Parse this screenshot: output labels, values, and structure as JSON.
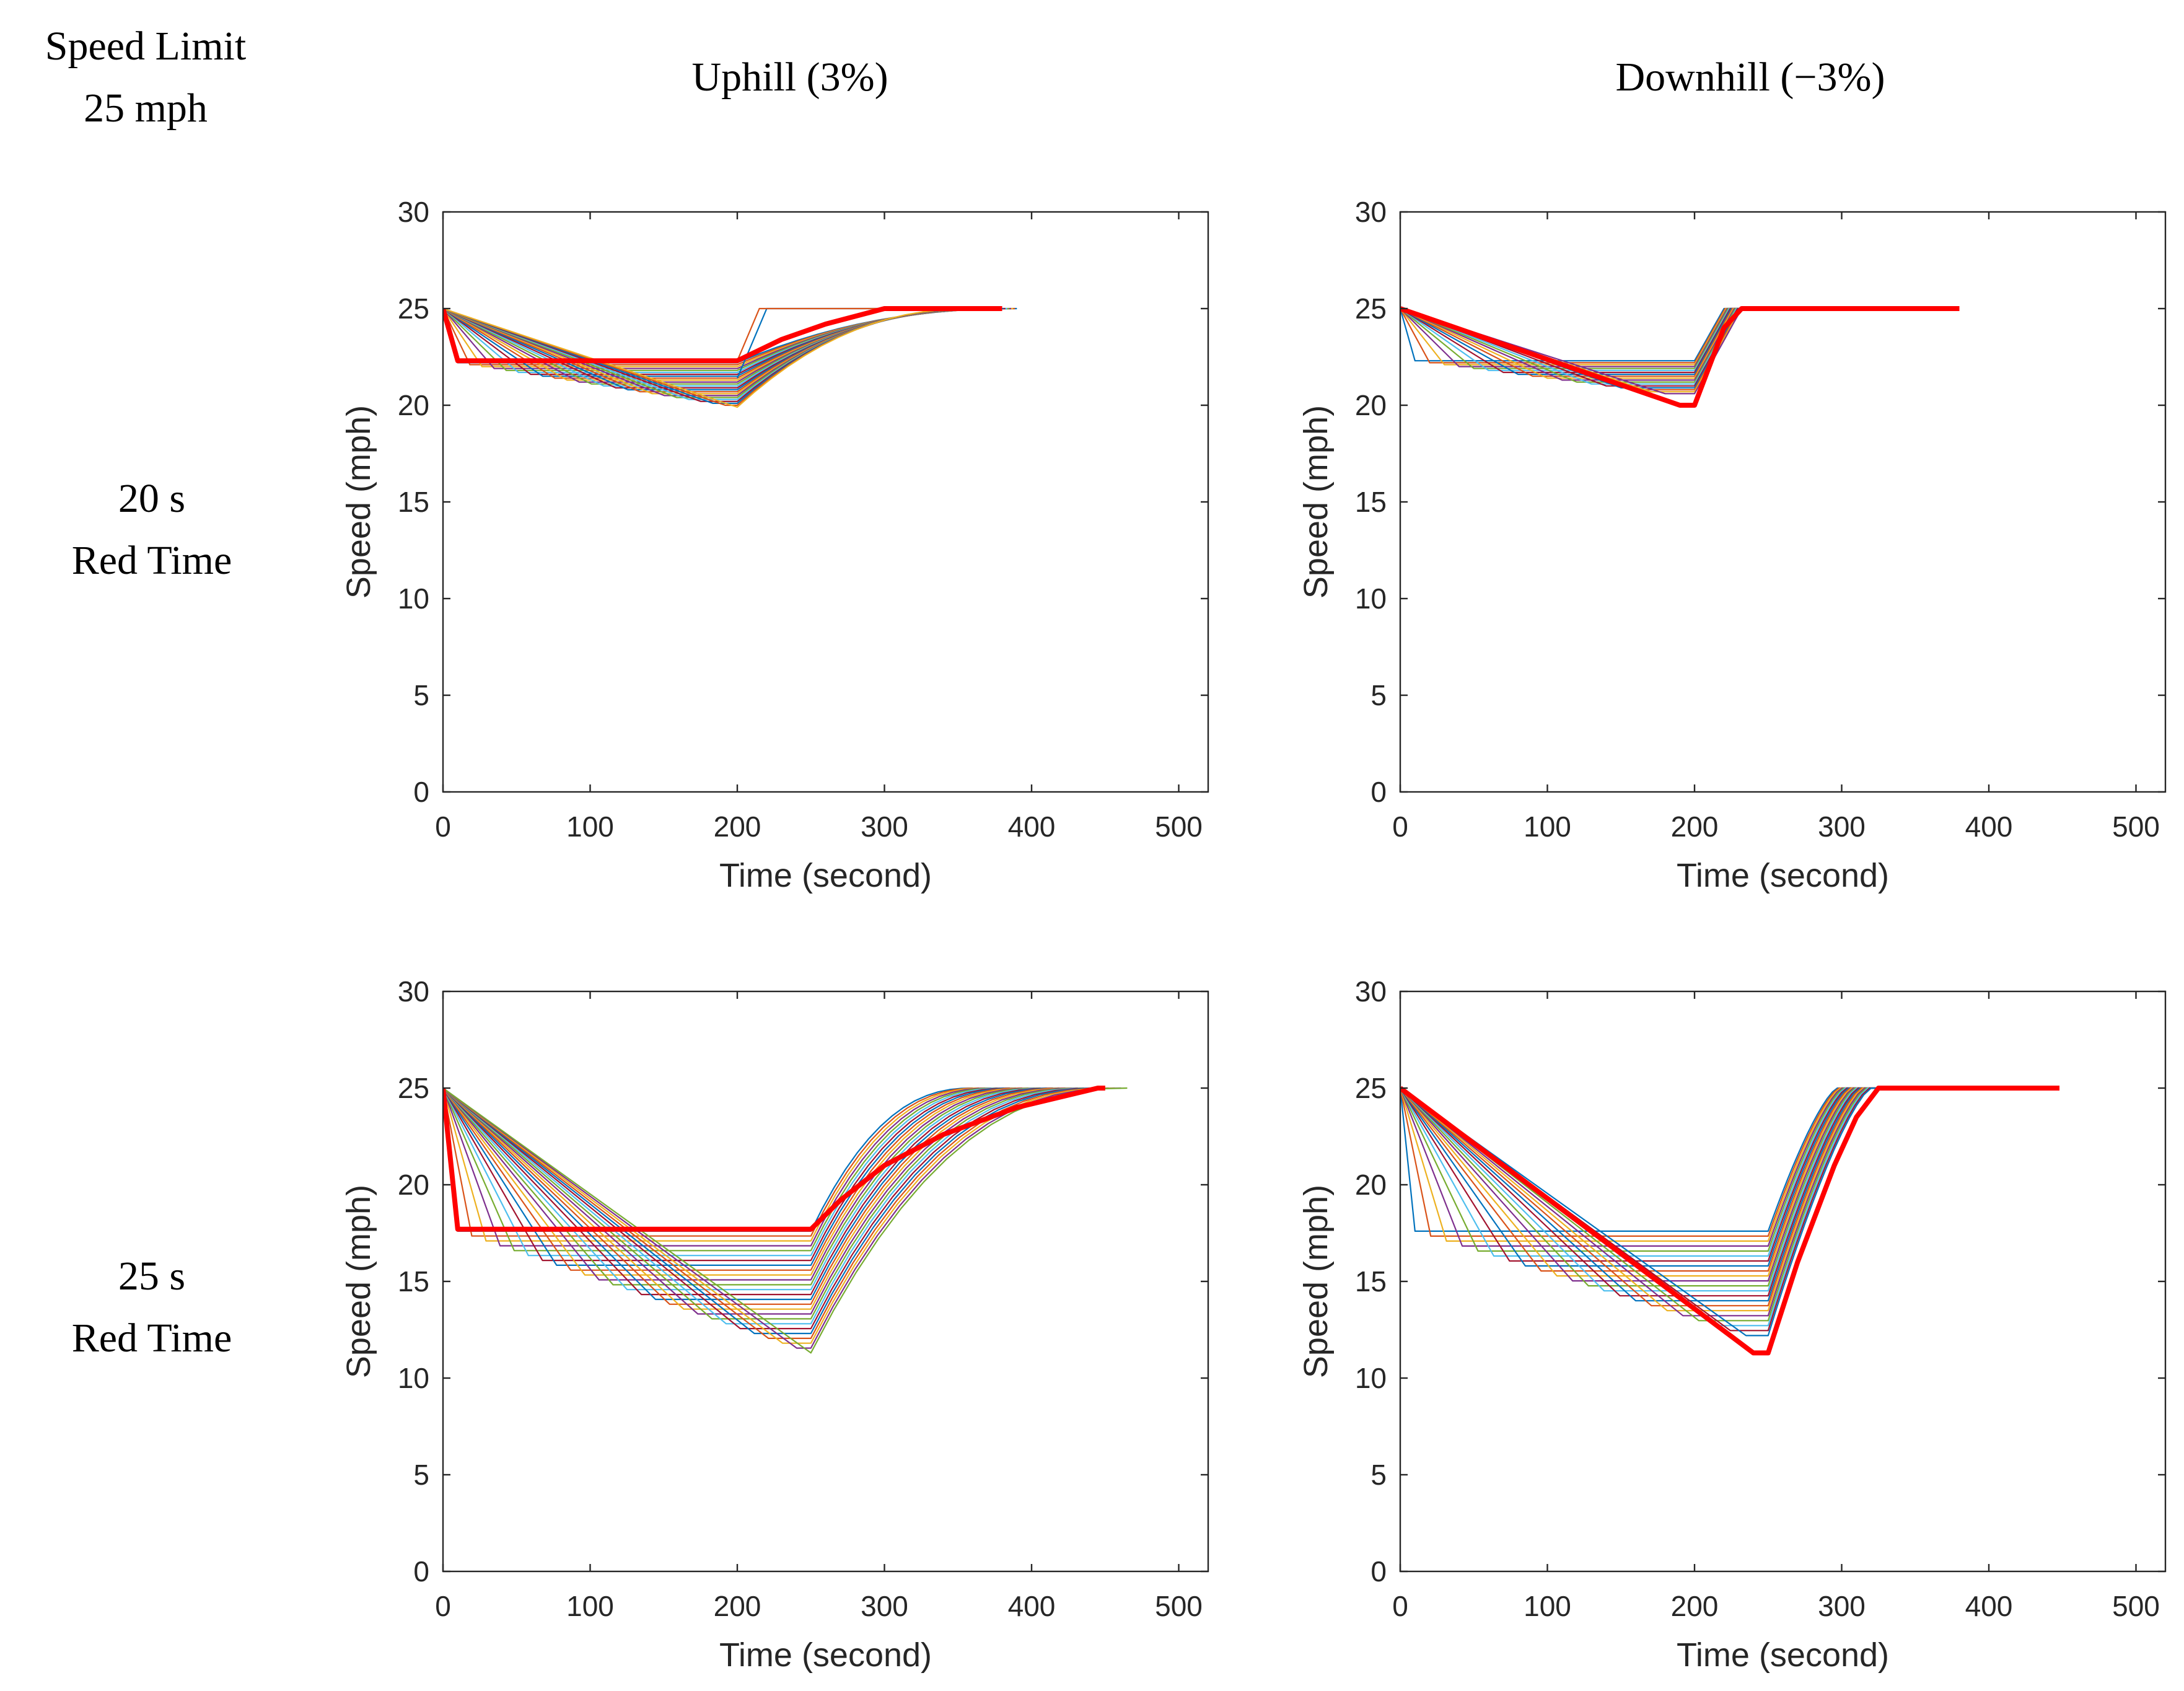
{
  "header": {
    "corner_line1": "Speed Limit",
    "corner_line2": "25 mph",
    "col_uphill": "Uphill (3%)",
    "col_downhill": "Downhill (−3%)"
  },
  "rows": {
    "row1_line1": "20 s",
    "row1_line2": "Red Time",
    "row2_line1": "25 s",
    "row2_line2": "Red Time"
  },
  "style": {
    "highlight_color": "#ff0000",
    "axis_color": "#262626",
    "palette": [
      "#0072bd",
      "#d95319",
      "#edb120",
      "#7e2f8e",
      "#77ac30",
      "#4dbeee",
      "#a2142f"
    ]
  },
  "chart_data": [
    {
      "id": "uphill-20s",
      "type": "line",
      "title": "",
      "xlabel": "Time (second)",
      "ylabel": "Speed (mph)",
      "xlim": [
        0,
        520
      ],
      "ylim": [
        0,
        30
      ],
      "xticks": [
        0,
        100,
        200,
        300,
        400,
        500
      ],
      "yticks": [
        0,
        5,
        10,
        15,
        20,
        25,
        30
      ],
      "grid": false,
      "bundle": {
        "shape": "ramp",
        "count": 24,
        "v0": 25,
        "vmin": 22.2,
        "vmax": 19.9,
        "drop_start": 10,
        "drop_end": 200,
        "t_end": 200,
        "rec_start": 390,
        "rec_end": 360,
        "rec_curve": 0.4
      },
      "series": [
        {
          "name": "highlighted",
          "color": "#ff0000",
          "points": [
            [
              0,
              25
            ],
            [
              10,
              22.3
            ],
            [
              200,
              22.3
            ],
            [
              230,
              23.4
            ],
            [
              260,
              24.2
            ],
            [
              300,
              25
            ],
            [
              380,
              25
            ]
          ]
        },
        {
          "name": "fast-recovery",
          "color": "#d95319",
          "points": [
            [
              200,
              22.3
            ],
            [
              215,
              25
            ],
            [
              225,
              25
            ],
            [
              380,
              25
            ]
          ]
        },
        {
          "name": "fast-recovery-2",
          "color": "#0072bd",
          "points": [
            [
              200,
              21.4
            ],
            [
              220,
              25
            ],
            [
              232,
              25
            ],
            [
              380,
              25
            ]
          ]
        }
      ]
    },
    {
      "id": "downhill-20s",
      "type": "line",
      "title": "",
      "xlabel": "Time (second)",
      "ylabel": "Speed (mph)",
      "xlim": [
        0,
        520
      ],
      "ylim": [
        0,
        30
      ],
      "xticks": [
        0,
        100,
        200,
        300,
        400,
        500
      ],
      "yticks": [
        0,
        5,
        10,
        15,
        20,
        25,
        30
      ],
      "grid": false,
      "bundle": {
        "shape": "ramp",
        "count": 18,
        "v0": 25,
        "vmin": 22.3,
        "vmax": 20.6,
        "drop_start": 10,
        "drop_end": 180,
        "t_end": 200,
        "rec_start": 220,
        "rec_end": 232,
        "rec_curve": 0,
        "tail_end": 380
      },
      "series": [
        {
          "name": "highlighted",
          "color": "#ff0000",
          "points": [
            [
              0,
              25
            ],
            [
              190,
              20
            ],
            [
              200,
              20
            ],
            [
              220,
              24
            ],
            [
              232,
              25
            ],
            [
              380,
              25
            ]
          ]
        }
      ]
    },
    {
      "id": "uphill-25s",
      "type": "line",
      "title": "",
      "xlabel": "Time (second)",
      "ylabel": "Speed (mph)",
      "xlim": [
        0,
        520
      ],
      "ylim": [
        0,
        30
      ],
      "xticks": [
        0,
        100,
        200,
        300,
        400,
        500
      ],
      "yticks": [
        0,
        5,
        10,
        15,
        20,
        25,
        30
      ],
      "grid": false,
      "bundle": {
        "shape": "ramp",
        "count": 26,
        "v0": 25,
        "vmin": 17.6,
        "vmax": 11.3,
        "drop_start": 10,
        "drop_end": 250,
        "t_end": 250,
        "rec_start": 360,
        "rec_end": 465,
        "rec_curve": 0.45
      },
      "series": [
        {
          "name": "highlighted",
          "color": "#ff0000",
          "points": [
            [
              0,
              25
            ],
            [
              10,
              17.7
            ],
            [
              250,
              17.7
            ],
            [
              270,
              19.2
            ],
            [
              300,
              21
            ],
            [
              340,
              22.6
            ],
            [
              390,
              24
            ],
            [
              445,
              25
            ],
            [
              450,
              25
            ]
          ]
        }
      ]
    },
    {
      "id": "downhill-25s",
      "type": "line",
      "title": "",
      "xlabel": "Time (second)",
      "ylabel": "Speed (mph)",
      "xlim": [
        0,
        520
      ],
      "ylim": [
        0,
        30
      ],
      "xticks": [
        0,
        100,
        200,
        300,
        400,
        500
      ],
      "yticks": [
        0,
        5,
        10,
        15,
        20,
        25,
        30
      ],
      "grid": false,
      "bundle": {
        "shape": "ramp",
        "count": 22,
        "v0": 25,
        "vmin": 17.6,
        "vmax": 12.2,
        "drop_start": 10,
        "drop_end": 235,
        "t_end": 250,
        "rec_start": 297,
        "rec_end": 320,
        "rec_curve": 0.12,
        "tail_end": 330
      },
      "series": [
        {
          "name": "highlighted",
          "color": "#ff0000",
          "points": [
            [
              0,
              25
            ],
            [
              240,
              11.3
            ],
            [
              250,
              11.3
            ],
            [
              270,
              16
            ],
            [
              295,
              21
            ],
            [
              310,
              23.5
            ],
            [
              325,
              25
            ],
            [
              448,
              25
            ]
          ]
        }
      ]
    }
  ]
}
